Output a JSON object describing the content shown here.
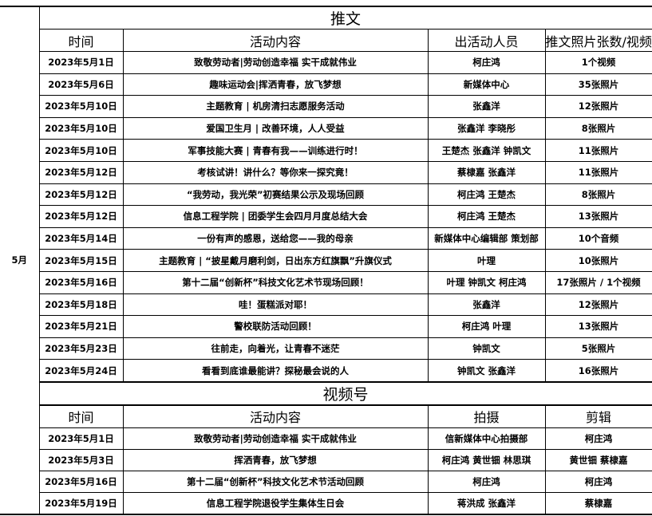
{
  "month": "5月",
  "tweets": {
    "title": "推文",
    "headers": [
      "时间",
      "活动内容",
      "出活动人员",
      "推文照片张数/视频"
    ],
    "rows": [
      [
        "2023年5月1日",
        "致敬劳动者|劳动创造幸福 实干成就伟业",
        "柯庄鸿",
        "1个视频"
      ],
      [
        "2023年5月6日",
        "趣味运动会|挥洒青春，放飞梦想",
        "新媒体中心",
        "35张照片"
      ],
      [
        "2023年5月10日",
        "主题教育 | 机房清扫志愿服务活动",
        "张鑫洋",
        "12张照片"
      ],
      [
        "2023年5月10日",
        "爱国卫生月 | 改善环境，人人受益",
        "张鑫洋 李晓彤",
        "8张照片"
      ],
      [
        "2023年5月10日",
        "军事技能大赛 | 青春有我——训练进行时！",
        "王楚杰 张鑫洋 钟凯文",
        "11张照片"
      ],
      [
        "2023年5月12日",
        "考核试讲！讲什么？等你来一探究竟！",
        "蔡棣嘉 张鑫洋",
        "11张照片"
      ],
      [
        "2023年5月12日",
        "“我劳动，我光荣”初赛结果公示及现场回顾",
        "柯庄鸿 王楚杰",
        "8张照片"
      ],
      [
        "2023年5月12日",
        "信息工程学院 | 团委学生会四月月度总结大会",
        "柯庄鸿 王楚杰",
        "13张照片"
      ],
      [
        "2023年5月14日",
        "一份有声的感恩，送给您——我的母亲",
        "新媒体中心编辑部 策划部",
        "10个音频"
      ],
      [
        "2023年5月15日",
        "主题教育 | “披星戴月磨利剑，日出东方红旗飘”升旗仪式",
        "叶理",
        "10张照片"
      ],
      [
        "2023年5月16日",
        "第十二届“创新杯”科技文化艺术节现场回顾！",
        "叶理 钟凯文 柯庄鸿",
        "17张照片 / 1个视频"
      ],
      [
        "2023年5月18日",
        "哇！蛋糕派对耶！",
        "张鑫洋",
        "12张照片"
      ],
      [
        "2023年5月21日",
        "警校联防活动回顾！",
        "柯庄鸿 叶理",
        "13张照片"
      ],
      [
        "2023年5月23日",
        "往前走，向着光，让青春不迷茫",
        "钟凯文",
        "5张照片"
      ],
      [
        "2023年5月24日",
        "看看到底谁最能讲？探秘最会说的人",
        "钟凯文 张鑫洋",
        "16张照片"
      ]
    ]
  },
  "video": {
    "title": "视频号",
    "headers": [
      "时间",
      "活动内容",
      "拍摄",
      "剪辑"
    ],
    "rows": [
      [
        "2023年5月1日",
        "致敬劳动者|劳动创造幸福 实干成就伟业",
        "信新媒体中心拍摄部",
        "柯庄鸿"
      ],
      [
        "2023年5月3日",
        "挥洒青春，放飞梦想",
        "柯庄鸿 黄世钿 林思琪",
        "黄世钿 蔡棣嘉"
      ],
      [
        "2023年5月16日",
        "第十二届“创新杯”科技文化艺术节活动回顾",
        "柯庄鸿",
        "柯庄鸿"
      ],
      [
        "2023年5月19日",
        "信息工程学院退役学生集体生日会",
        "蒋洪成 张鑫洋",
        "蔡棣嘉"
      ]
    ]
  }
}
